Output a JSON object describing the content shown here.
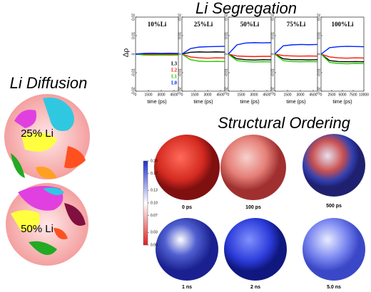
{
  "segregation_title": "Li Segregation",
  "y_label": "Δρ",
  "chart_data": [
    {
      "type": "line",
      "title": "10%Li",
      "xlabel": "time (ps)",
      "x": [
        0,
        1000,
        2000,
        3000,
        4000,
        5000
      ],
      "xlim": [
        0,
        5000
      ],
      "xticks": [
        0,
        1500,
        3000,
        4500
      ],
      "ylim": [
        -0.02,
        0.02
      ],
      "yticks": [
        -0.02,
        -0.01,
        0,
        0.01,
        0.02
      ],
      "legend": "center right",
      "series": [
        {
          "name": "L3",
          "color": "#000000",
          "values": [
            0,
            0.0003,
            0.0002,
            0.0003,
            0.0002,
            0.0003
          ]
        },
        {
          "name": "L2",
          "color": "#ff1a00",
          "values": [
            0,
            -0.0002,
            -0.0001,
            -0.0002,
            -0.0001,
            -0.0002
          ]
        },
        {
          "name": "L1",
          "color": "#22cc00",
          "values": [
            0,
            -0.0005,
            -0.0006,
            -0.0005,
            -0.0006,
            -0.0005
          ]
        },
        {
          "name": "L0",
          "color": "#0022ff",
          "values": [
            0,
            0.0004,
            0.0005,
            0.0004,
            0.0005,
            0.0004
          ]
        }
      ]
    },
    {
      "type": "line",
      "title": "25%Li",
      "xlabel": "time (ps)",
      "x": [
        0,
        1000,
        2000,
        3000,
        4000,
        5000
      ],
      "xlim": [
        0,
        5000
      ],
      "xticks": [
        0,
        1500,
        3000,
        4500
      ],
      "ylim": [
        -0.02,
        0.02
      ],
      "yticks": [
        -0.02,
        -0.01,
        0,
        0.01,
        0.02
      ],
      "series": [
        {
          "color": "#000000",
          "values": [
            0,
            0.001,
            0.0012,
            0.0011,
            0.0012,
            0.0011
          ]
        },
        {
          "color": "#ff1a00",
          "values": [
            0,
            -0.0015,
            -0.002,
            -0.0022,
            -0.002,
            -0.0021
          ]
        },
        {
          "color": "#22cc00",
          "values": [
            0,
            -0.003,
            -0.0038,
            -0.004,
            -0.0039,
            -0.004
          ]
        },
        {
          "color": "#0022ff",
          "values": [
            0,
            0.003,
            0.0038,
            0.004,
            0.0041,
            0.0042
          ]
        }
      ]
    },
    {
      "type": "line",
      "title": "50%Li",
      "xlabel": "time (ps)",
      "x": [
        0,
        1000,
        2000,
        3000,
        4000,
        5000
      ],
      "xlim": [
        0,
        5000
      ],
      "xticks": [
        0,
        1500,
        3000,
        4500
      ],
      "ylim": [
        -0.02,
        0.02
      ],
      "yticks": [
        -0.02,
        -0.01,
        0,
        0.01,
        0.02
      ],
      "series": [
        {
          "color": "#000000",
          "values": [
            0,
            -0.0025,
            -0.003,
            -0.0032,
            -0.003,
            -0.0031
          ]
        },
        {
          "color": "#ff1a00",
          "values": [
            0,
            -0.001,
            -0.0012,
            -0.0013,
            -0.0012,
            -0.0012
          ]
        },
        {
          "color": "#22cc00",
          "values": [
            0,
            -0.0035,
            -0.004,
            -0.0042,
            -0.0041,
            -0.0042
          ]
        },
        {
          "color": "#0022ff",
          "values": [
            0,
            0.005,
            0.006,
            0.0062,
            0.0061,
            0.0062
          ]
        }
      ]
    },
    {
      "type": "line",
      "title": "75%Li",
      "xlabel": "time (ps)",
      "x": [
        0,
        1000,
        2000,
        3000,
        4000,
        5000
      ],
      "xlim": [
        0,
        5000
      ],
      "xticks": [
        0,
        1500,
        3000,
        4500
      ],
      "ylim": [
        -0.02,
        0.02
      ],
      "yticks": [
        -0.02,
        -0.01,
        0,
        0.01,
        0.02
      ],
      "series": [
        {
          "color": "#000000",
          "values": [
            0,
            -0.0025,
            -0.003,
            -0.003,
            -0.0031,
            -0.003
          ]
        },
        {
          "color": "#ff1a00",
          "values": [
            0,
            -0.0008,
            -0.001,
            -0.0011,
            -0.001,
            -0.0011
          ]
        },
        {
          "color": "#22cc00",
          "values": [
            0,
            -0.0035,
            -0.004,
            -0.0041,
            -0.004,
            -0.0041
          ]
        },
        {
          "color": "#0022ff",
          "values": [
            0,
            0.0045,
            0.005,
            0.0052,
            0.0051,
            0.0052
          ]
        }
      ]
    },
    {
      "type": "line",
      "title": "100%Li",
      "xlabel": "time (ps)",
      "x": [
        0,
        2000,
        4000,
        6000,
        8000,
        10000
      ],
      "xlim": [
        0,
        10000
      ],
      "xticks": [
        0,
        2500,
        5000,
        7500,
        10000
      ],
      "ylim": [
        -0.02,
        0.02
      ],
      "yticks": [
        -0.02,
        -0.01,
        0,
        0.01,
        0.02
      ],
      "series": [
        {
          "color": "#000000",
          "values": [
            0,
            -0.0035,
            -0.004,
            -0.0041,
            -0.004,
            -0.0041
          ]
        },
        {
          "color": "#ff1a00",
          "values": [
            0,
            -0.0015,
            -0.002,
            -0.0022,
            -0.002,
            -0.0021
          ]
        },
        {
          "color": "#22cc00",
          "values": [
            0,
            -0.0045,
            -0.005,
            -0.0052,
            -0.005,
            -0.0051
          ]
        },
        {
          "color": "#0022ff",
          "values": [
            0,
            0.0035,
            0.004,
            0.0042,
            0.0041,
            0.004
          ]
        }
      ]
    }
  ],
  "diffusion": {
    "title": "Li Diffusion",
    "labels": [
      "25% Li",
      "50% Li"
    ]
  },
  "ordering": {
    "title": "Structural Ordering",
    "labels": [
      "0 ps",
      "100 ps",
      "500 ps",
      "1 ns",
      "2 ns",
      "5.0 ns"
    ],
    "colorbar": {
      "lim": [
        0,
        0.2
      ],
      "ticks": [
        {
          "value": 0.2,
          "label": "0.20"
        },
        {
          "value": 0.17,
          "label": "0.17"
        },
        {
          "value": 0.13,
          "label": "0.13"
        },
        {
          "value": 0.1,
          "label": "0.10"
        },
        {
          "value": 0.07,
          "label": "0.07"
        },
        {
          "value": 0.03,
          "label": "0.03"
        },
        {
          "value": 0,
          "label": "0.00"
        }
      ]
    }
  }
}
